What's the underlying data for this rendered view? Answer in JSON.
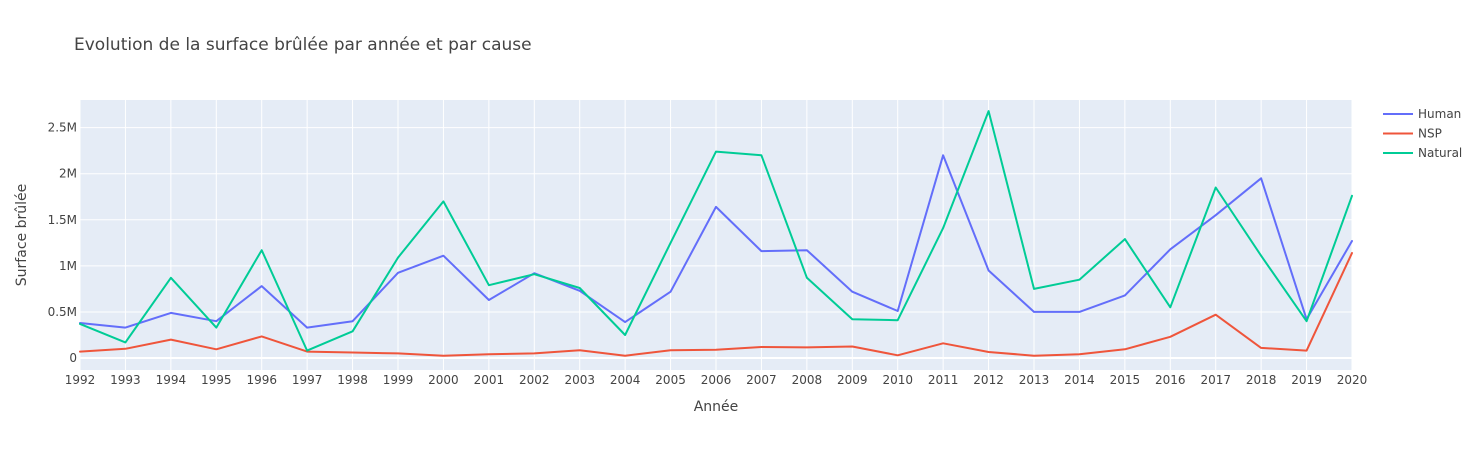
{
  "chart_data": {
    "type": "line",
    "title": "Evolution de la surface brûlée par année et par cause",
    "xlabel": "Année",
    "ylabel": "Surface brûlée",
    "x": [
      1992,
      1993,
      1994,
      1995,
      1996,
      1997,
      1998,
      1999,
      2000,
      2001,
      2002,
      2003,
      2004,
      2005,
      2006,
      2007,
      2008,
      2009,
      2010,
      2011,
      2012,
      2013,
      2014,
      2015,
      2016,
      2017,
      2018,
      2019,
      2020
    ],
    "xlim": [
      1992,
      2020
    ],
    "ylim": [
      -130000,
      2800000
    ],
    "yticks": [
      0,
      500000,
      1000000,
      1500000,
      2000000,
      2500000
    ],
    "ytick_labels": [
      "0",
      "0.5M",
      "1M",
      "1.5M",
      "2M",
      "2.5M"
    ],
    "grid": true,
    "legend_position": "top-right",
    "series": [
      {
        "name": "Human",
        "color": "#636efa",
        "values": [
          380000,
          330000,
          490000,
          400000,
          780000,
          330000,
          400000,
          925000,
          1110000,
          630000,
          920000,
          730000,
          390000,
          720000,
          1640000,
          1160000,
          1170000,
          720000,
          510000,
          2200000,
          950000,
          500000,
          500000,
          680000,
          1180000,
          1550000,
          1950000,
          420000,
          1270000
        ]
      },
      {
        "name": "NSP",
        "color": "#ef553b",
        "values": [
          70000,
          100000,
          200000,
          95000,
          235000,
          70000,
          60000,
          50000,
          25000,
          40000,
          50000,
          85000,
          25000,
          85000,
          90000,
          120000,
          115000,
          125000,
          30000,
          160000,
          65000,
          25000,
          40000,
          95000,
          230000,
          470000,
          110000,
          80000,
          1140000
        ]
      },
      {
        "name": "Natural",
        "color": "#00cc96",
        "values": [
          370000,
          170000,
          870000,
          330000,
          1170000,
          80000,
          290000,
          1090000,
          1700000,
          790000,
          910000,
          760000,
          250000,
          1250000,
          2240000,
          2200000,
          870000,
          420000,
          410000,
          1410000,
          2680000,
          750000,
          850000,
          1290000,
          550000,
          1850000,
          1110000,
          400000,
          1760000
        ]
      }
    ]
  }
}
